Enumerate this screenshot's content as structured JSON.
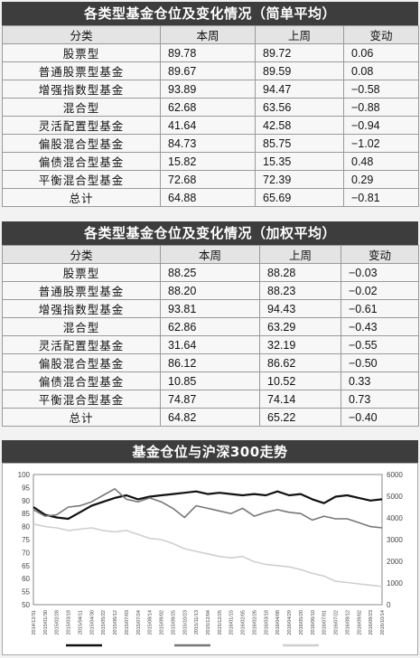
{
  "table1": {
    "title": "各类型基金仓位及变化情况（简单平均）",
    "headers": [
      "分类",
      "本周",
      "上周",
      "变动"
    ],
    "rows": [
      [
        "股票型",
        "89.78",
        "89.72",
        "0.06"
      ],
      [
        "普通股票型基金",
        "89.67",
        "89.59",
        "0.08"
      ],
      [
        "增强指数型基金",
        "93.89",
        "94.47",
        "−0.58"
      ],
      [
        "混合型",
        "62.68",
        "63.56",
        "−0.88"
      ],
      [
        "灵活配置型基金",
        "41.64",
        "42.58",
        "−0.94"
      ],
      [
        "偏股混合型基金",
        "84.73",
        "85.75",
        "−1.02"
      ],
      [
        "偏债混合型基金",
        "15.82",
        "15.35",
        "0.48"
      ],
      [
        "平衡混合型基金",
        "72.68",
        "72.39",
        "0.29"
      ],
      [
        "总计",
        "64.88",
        "65.69",
        "−0.81"
      ]
    ]
  },
  "table2": {
    "title": "各类型基金仓位及变化情况（加权平均）",
    "headers": [
      "分类",
      "本周",
      "上周",
      "变动"
    ],
    "rows": [
      [
        "股票型",
        "88.25",
        "88.28",
        "−0.03"
      ],
      [
        "普通股票型基金",
        "88.20",
        "88.23",
        "−0.02"
      ],
      [
        "增强指数型基金",
        "93.81",
        "94.43",
        "−0.61"
      ],
      [
        "混合型",
        "62.86",
        "63.29",
        "−0.43"
      ],
      [
        "灵活配置型基金",
        "31.64",
        "32.19",
        "−0.55"
      ],
      [
        "偏股混合型基金",
        "86.12",
        "86.62",
        "−0.50"
      ],
      [
        "偏债混合型基金",
        "10.85",
        "10.52",
        "0.33"
      ],
      [
        "平衡混合型基金",
        "74.87",
        "74.14",
        "0.73"
      ],
      [
        "总计",
        "64.82",
        "65.22",
        "−0.40"
      ]
    ]
  },
  "chart_data": {
    "type": "line",
    "title": "基金仓位与沪深300走势",
    "ylim": [
      50,
      100
    ],
    "y2lim": [
      0,
      6000
    ],
    "yticks": [
      "100",
      "95",
      "90",
      "85",
      "80",
      "75",
      "70",
      "65",
      "60",
      "55",
      "50"
    ],
    "y2ticks": [
      "6000",
      "5000",
      "4000",
      "3000",
      "2000",
      "1000",
      "0"
    ],
    "xticks": [
      "2014/12/31",
      "2015/01/30",
      "2015/02/28",
      "2015/03/18",
      "2015/04/11",
      "2015/04/30",
      "2015/05/22",
      "2015/06/12",
      "2015/07/03",
      "2015/07/24",
      "2015/08/14",
      "2015/09/02",
      "2015/09/25",
      "2015/10/23",
      "2015/11/13",
      "2015/12/04",
      "2015/12/25",
      "2016/01/15",
      "2016/02/05",
      "2016/02/26",
      "2016/03/18",
      "2016/04/08",
      "2016/04/29",
      "2016/05/20",
      "2016/06/10",
      "2016/07/01",
      "2016/07/22",
      "2016/08/12",
      "2016/09/02",
      "2016/09/23",
      "2016/10/14"
    ],
    "legend_position": "bottom",
    "series": [
      {
        "name": "",
        "axis": "left",
        "color": "#111111",
        "values": [
          87.5,
          84.5,
          83.5,
          83.0,
          85.5,
          88.0,
          89.5,
          91.0,
          92.0,
          90.5,
          91.5,
          92.0,
          92.5,
          93.0,
          93.5,
          92.5,
          93.0,
          92.5,
          92.0,
          92.5,
          92.0,
          93.5,
          92.0,
          92.5,
          90.5,
          89.0,
          91.5,
          92.0,
          91.0,
          90.0,
          90.5
        ]
      },
      {
        "name": "",
        "axis": "left",
        "color": "#777777",
        "values": [
          86.5,
          84.0,
          84.5,
          87.5,
          88.0,
          89.5,
          92.0,
          94.5,
          90.5,
          89.5,
          91.0,
          89.5,
          87.0,
          83.5,
          88.0,
          87.0,
          86.0,
          85.0,
          87.0,
          84.0,
          85.5,
          86.5,
          85.5,
          85.0,
          82.5,
          84.0,
          83.0,
          83.0,
          81.5,
          80.0,
          79.5
        ]
      },
      {
        "name": "",
        "axis": "left",
        "color": "#cfcfcf",
        "values": [
          81.0,
          80.0,
          79.5,
          78.5,
          79.0,
          79.5,
          78.5,
          78.0,
          78.5,
          77.0,
          75.5,
          75.0,
          73.5,
          71.5,
          70.5,
          69.5,
          68.5,
          68.0,
          68.5,
          66.5,
          65.5,
          65.0,
          64.5,
          63.5,
          62.0,
          61.0,
          59.0,
          58.5,
          58.0,
          57.5,
          57.0
        ]
      }
    ]
  }
}
